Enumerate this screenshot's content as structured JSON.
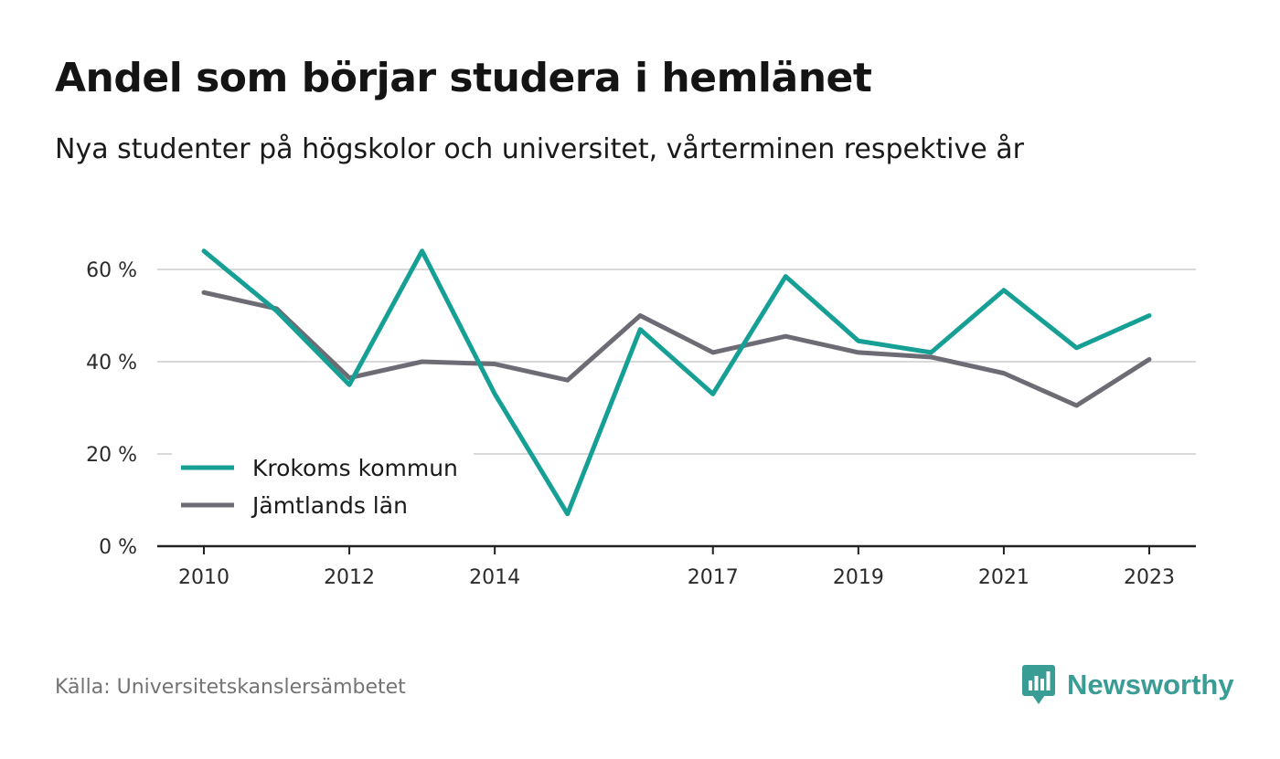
{
  "header": {
    "title": "Andel som börjar studera i hemlänet",
    "subtitle": "Nya studenter på högskolor och universitet, vårterminen respektive år"
  },
  "footer": {
    "source": "Källa: Universitetskanslersämbetet",
    "brand": "Newsworthy"
  },
  "colors": {
    "krokom": "#16a095",
    "jamtland": "#6d6c75",
    "grid": "#d9d9d9",
    "axis": "#222222",
    "brand": "#3a9d95"
  },
  "chart_data": {
    "type": "line",
    "title": "Andel som börjar studera i hemlänet",
    "subtitle": "Nya studenter på högskolor och universitet, vårterminen respektive år",
    "x": [
      2010,
      2011,
      2012,
      2013,
      2014,
      2015,
      2016,
      2017,
      2018,
      2019,
      2020,
      2021,
      2022,
      2023
    ],
    "x_tick_labels": [
      "2010",
      "2012",
      "2014",
      "2017",
      "2019",
      "2021",
      "2023"
    ],
    "x_tick_values": [
      2010,
      2012,
      2014,
      2017,
      2019,
      2021,
      2023
    ],
    "y_tick_labels": [
      "0 %",
      "20 %",
      "40 %",
      "60 %"
    ],
    "y_tick_values": [
      0,
      20,
      40,
      60
    ],
    "xlim": [
      2010,
      2023
    ],
    "ylim": [
      0,
      60
    ],
    "grid": true,
    "legend_position": "bottom-left",
    "series": [
      {
        "name": "Krokoms kommun",
        "values": [
          64,
          51,
          35,
          64,
          33,
          7,
          47,
          33,
          58.5,
          44.5,
          42,
          55.5,
          43,
          50
        ],
        "color": "#16a095"
      },
      {
        "name": "Jämtlands län",
        "values": [
          55,
          51.5,
          36.5,
          40,
          39.5,
          36,
          50,
          42,
          45.5,
          42,
          41,
          37.5,
          30.5,
          40.5
        ],
        "color": "#6d6c75"
      }
    ]
  }
}
